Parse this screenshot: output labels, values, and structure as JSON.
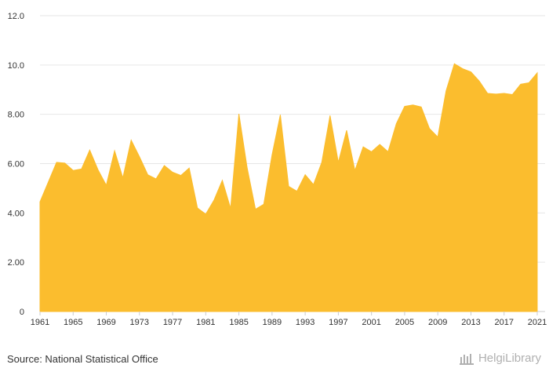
{
  "chart_data": {
    "type": "area",
    "x": [
      1961,
      1962,
      1963,
      1964,
      1965,
      1966,
      1967,
      1968,
      1969,
      1970,
      1971,
      1972,
      1973,
      1974,
      1975,
      1976,
      1977,
      1978,
      1979,
      1980,
      1981,
      1982,
      1983,
      1984,
      1985,
      1986,
      1987,
      1988,
      1989,
      1990,
      1991,
      1992,
      1993,
      1994,
      1995,
      1996,
      1997,
      1998,
      1999,
      2000,
      2001,
      2002,
      2003,
      2004,
      2005,
      2006,
      2007,
      2008,
      2009,
      2010,
      2011,
      2012,
      2013,
      2014,
      2015,
      2016,
      2017,
      2018,
      2019,
      2020,
      2021
    ],
    "values": [
      4.45,
      5.25,
      6.05,
      6.02,
      5.72,
      5.78,
      6.55,
      5.75,
      5.12,
      6.52,
      5.42,
      6.95,
      6.28,
      5.55,
      5.38,
      5.92,
      5.65,
      5.52,
      5.82,
      4.2,
      3.95,
      4.52,
      5.32,
      4.18,
      8.02,
      5.82,
      4.15,
      4.35,
      6.35,
      7.98,
      5.08,
      4.88,
      5.55,
      5.15,
      6.05,
      7.95,
      6.05,
      7.35,
      5.72,
      6.68,
      6.48,
      6.78,
      6.48,
      7.62,
      8.32,
      8.38,
      8.3,
      7.42,
      7.08,
      8.95,
      10.05,
      9.85,
      9.72,
      9.35,
      8.85,
      8.82,
      8.85,
      8.8,
      9.22,
      9.28,
      9.68
    ],
    "x_ticks": [
      "1961",
      "1965",
      "1969",
      "1973",
      "1977",
      "1981",
      "1985",
      "1989",
      "1993",
      "1997",
      "2001",
      "2005",
      "2009",
      "2013",
      "2017",
      "2021"
    ],
    "y_ticks": [
      "0",
      "2.00",
      "4.00",
      "6.00",
      "8.00",
      "10.0",
      "12.0"
    ],
    "xlim": [
      1961,
      2021
    ],
    "ylim": [
      0,
      12
    ],
    "grid": true,
    "fill_color": "#fbbd2e"
  },
  "footer": {
    "source": "Source: National Statistical Office",
    "brand": "HelgiLibrary"
  }
}
